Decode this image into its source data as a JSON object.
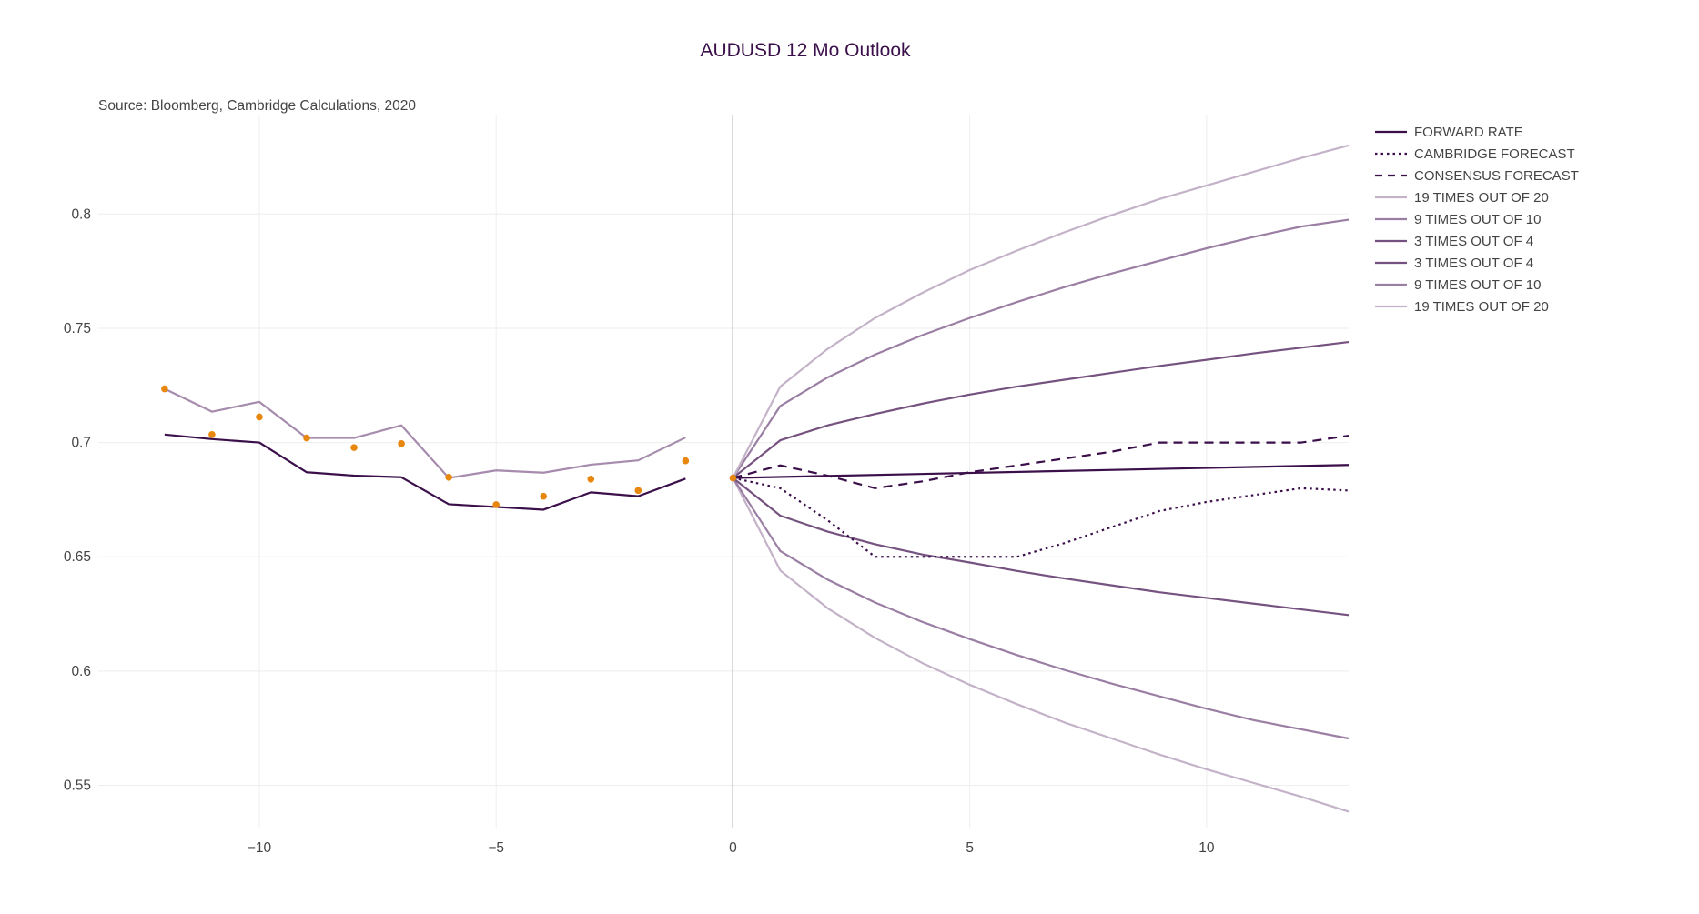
{
  "chart_data": {
    "type": "line",
    "title": "AUDUSD 12 Mo Outlook",
    "annotations": [
      "Source: Bloomberg, Cambridge Calculations, 2020"
    ],
    "xlabel": "",
    "ylabel": "",
    "xlim": [
      -13.4,
      13
    ],
    "ylim": [
      0.5315,
      0.8435
    ],
    "x_ticks": [
      -10,
      -5,
      0,
      5,
      10
    ],
    "x_tick_labels": [
      "−10",
      "−5",
      "0",
      "5",
      "10"
    ],
    "y_ticks": [
      0.55,
      0.6,
      0.65,
      0.7,
      0.75,
      0.8
    ],
    "y_tick_labels": [
      "0.55",
      "0.6",
      "0.65",
      "0.7",
      "0.75",
      "0.8"
    ],
    "grid": true,
    "legend_position": "top-right",
    "vertical_line_x": 0,
    "colors": {
      "dark": "#3b0f4a",
      "band_3of4": "#75527f",
      "band_9of10": "#9a7ea3",
      "band_19of20": "#c3b2c8",
      "history_alt": "#a68bad",
      "dots": "#e8870d",
      "zero_line": "#444444",
      "grid": "#eeeeee",
      "axis_text": "#444444",
      "title_text": "#3b0f4a"
    },
    "series": [
      {
        "name": "FORWARD RATE",
        "style": "solid",
        "color": "#3b0f4a",
        "legend": true,
        "x": [
          -12,
          -11,
          -10,
          -9,
          -8,
          -7,
          -6,
          -5,
          -4,
          -3,
          -2,
          -1
        ],
        "y": [
          0.7035,
          0.7015,
          0.7,
          0.687,
          0.6855,
          0.6848,
          0.673,
          0.6718,
          0.6706,
          0.6782,
          0.6765,
          0.6842
        ]
      },
      {
        "name": "FORWARD RATE",
        "style": "solid",
        "color": "#3b0f4a",
        "legend": false,
        "x": [
          0,
          13
        ],
        "y": [
          0.6845,
          0.6902
        ]
      },
      {
        "name": "CAMBRIDGE FORECAST",
        "style": "dot",
        "color": "#3b0f4a",
        "legend": true,
        "x": [
          0,
          1,
          2,
          3,
          4,
          5,
          6,
          7,
          8,
          9,
          10,
          11,
          12,
          13
        ],
        "y": [
          0.6845,
          0.68,
          0.666,
          0.65,
          0.65,
          0.65,
          0.65,
          0.656,
          0.663,
          0.67,
          0.674,
          0.677,
          0.68,
          0.679
        ]
      },
      {
        "name": "CONSENSUS FORECAST",
        "style": "dash",
        "color": "#3b0f4a",
        "legend": true,
        "x": [
          0,
          1,
          2,
          3,
          4,
          5,
          6,
          7,
          8,
          9,
          10,
          11,
          12,
          13
        ],
        "y": [
          0.6845,
          0.69,
          0.6855,
          0.68,
          0.683,
          0.687,
          0.69,
          0.693,
          0.696,
          0.7,
          0.7,
          0.7,
          0.7,
          0.703
        ]
      },
      {
        "name": "19 TIMES OUT OF 20",
        "style": "solid",
        "color": "#c3b2c8",
        "legend": true,
        "x": [
          0,
          1,
          2,
          3,
          4,
          5,
          6,
          7,
          8,
          9,
          10,
          11,
          12,
          13
        ],
        "y": [
          0.6845,
          0.7245,
          0.741,
          0.7545,
          0.7655,
          0.7755,
          0.784,
          0.792,
          0.7995,
          0.8065,
          0.8125,
          0.8185,
          0.8245,
          0.83
        ]
      },
      {
        "name": "9 TIMES OUT OF 10",
        "style": "solid",
        "color": "#9a7ea3",
        "legend": true,
        "x": [
          0,
          1,
          2,
          3,
          4,
          5,
          6,
          7,
          8,
          9,
          10,
          11,
          12,
          13
        ],
        "y": [
          0.6845,
          0.716,
          0.7285,
          0.7385,
          0.747,
          0.7545,
          0.7615,
          0.768,
          0.774,
          0.7795,
          0.785,
          0.79,
          0.7945,
          0.7975
        ]
      },
      {
        "name": "3 TIMES OUT OF 4",
        "style": "solid",
        "color": "#75527f",
        "legend": true,
        "x": [
          0,
          1,
          2,
          3,
          4,
          5,
          6,
          7,
          8,
          9,
          10,
          11,
          12,
          13
        ],
        "y": [
          0.6845,
          0.701,
          0.7075,
          0.7125,
          0.717,
          0.721,
          0.7245,
          0.7275,
          0.7305,
          0.7335,
          0.7362,
          0.739,
          0.7415,
          0.744
        ]
      },
      {
        "name": "3 TIMES OUT OF 4",
        "style": "solid",
        "color": "#75527f",
        "legend": true,
        "x": [
          0,
          1,
          2,
          3,
          4,
          5,
          6,
          7,
          8,
          9,
          10,
          11,
          12,
          13
        ],
        "y": [
          0.6845,
          0.668,
          0.661,
          0.6555,
          0.651,
          0.6475,
          0.6438,
          0.6405,
          0.6375,
          0.6345,
          0.632,
          0.6295,
          0.627,
          0.6245
        ]
      },
      {
        "name": "9 TIMES OUT OF 10",
        "style": "solid",
        "color": "#9a7ea3",
        "legend": true,
        "x": [
          0,
          1,
          2,
          3,
          4,
          5,
          6,
          7,
          8,
          9,
          10,
          11,
          12,
          13
        ],
        "y": [
          0.6845,
          0.6525,
          0.64,
          0.63,
          0.6215,
          0.614,
          0.607,
          0.6005,
          0.5945,
          0.589,
          0.5835,
          0.5785,
          0.5745,
          0.5705
        ]
      },
      {
        "name": "19 TIMES OUT OF 20",
        "style": "solid",
        "color": "#c3b2c8",
        "legend": true,
        "x": [
          0,
          1,
          2,
          3,
          4,
          5,
          6,
          7,
          8,
          9,
          10,
          11,
          12,
          13
        ],
        "y": [
          0.6845,
          0.644,
          0.6275,
          0.6145,
          0.6035,
          0.594,
          0.5855,
          0.5775,
          0.5705,
          0.5635,
          0.557,
          0.551,
          0.545,
          0.5385
        ]
      },
      {
        "name": "",
        "style": "solid",
        "color": "#a68bad",
        "legend": false,
        "x": [
          -12,
          -11,
          -10,
          -9,
          -8,
          -7,
          -6,
          -5,
          -4,
          -3,
          -2,
          -1
        ],
        "y": [
          0.7235,
          0.7135,
          0.7178,
          0.702,
          0.702,
          0.7075,
          0.6845,
          0.6878,
          0.6868,
          0.6903,
          0.6922,
          0.7022
        ]
      },
      {
        "name": "",
        "style": "markers",
        "color": "#e8870d",
        "legend": false,
        "x": [
          -12,
          -11,
          -10,
          -9,
          -8,
          -7,
          -6,
          -5,
          -4,
          -3,
          -2,
          -1,
          0
        ],
        "y": [
          0.7235,
          0.7035,
          0.7112,
          0.702,
          0.6978,
          0.6995,
          0.6848,
          0.6728,
          0.6765,
          0.684,
          0.679,
          0.692,
          0.6845
        ]
      }
    ]
  }
}
